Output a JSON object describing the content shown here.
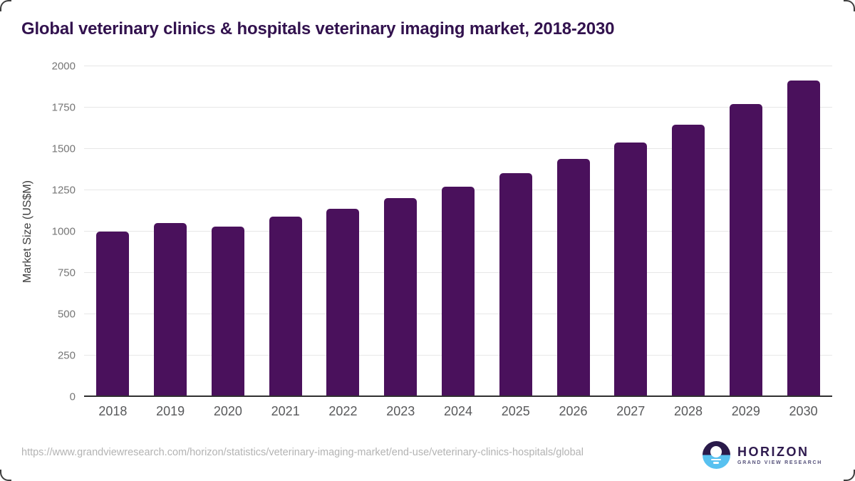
{
  "title": "Global veterinary clinics & hospitals veterinary imaging market, 2018-2030",
  "chart_data": {
    "type": "bar",
    "title": "Global veterinary clinics & hospitals veterinary imaging market, 2018-2030",
    "categories": [
      "2018",
      "2019",
      "2020",
      "2021",
      "2022",
      "2023",
      "2024",
      "2025",
      "2026",
      "2027",
      "2028",
      "2029",
      "2030"
    ],
    "values": [
      1000,
      1050,
      1030,
      1087,
      1136,
      1200,
      1272,
      1350,
      1440,
      1537,
      1645,
      1770,
      1915
    ],
    "xlabel": "",
    "ylabel": "Market Size (US$M)",
    "ylim": [
      0,
      2000
    ],
    "yticks": [
      0,
      250,
      500,
      750,
      1000,
      1250,
      1500,
      1750,
      2000
    ],
    "grid": true,
    "legend": false,
    "bar_color": "#4a115c"
  },
  "colors": {
    "title_text": "#32124e",
    "bar": "#4a115c",
    "gridline": "#e7e7e7",
    "axis_line": "#303030",
    "logo_dark": "#2a1a4a",
    "logo_blue": "#58c1f0"
  },
  "footer": {
    "source_url": "https://www.grandviewresearch.com/horizon/statistics/veterinary-imaging-market/end-use/veterinary-clinics-hospitals/global",
    "logo": {
      "brand": "HORIZON",
      "sub_brand": "GRAND VIEW RESEARCH"
    }
  }
}
